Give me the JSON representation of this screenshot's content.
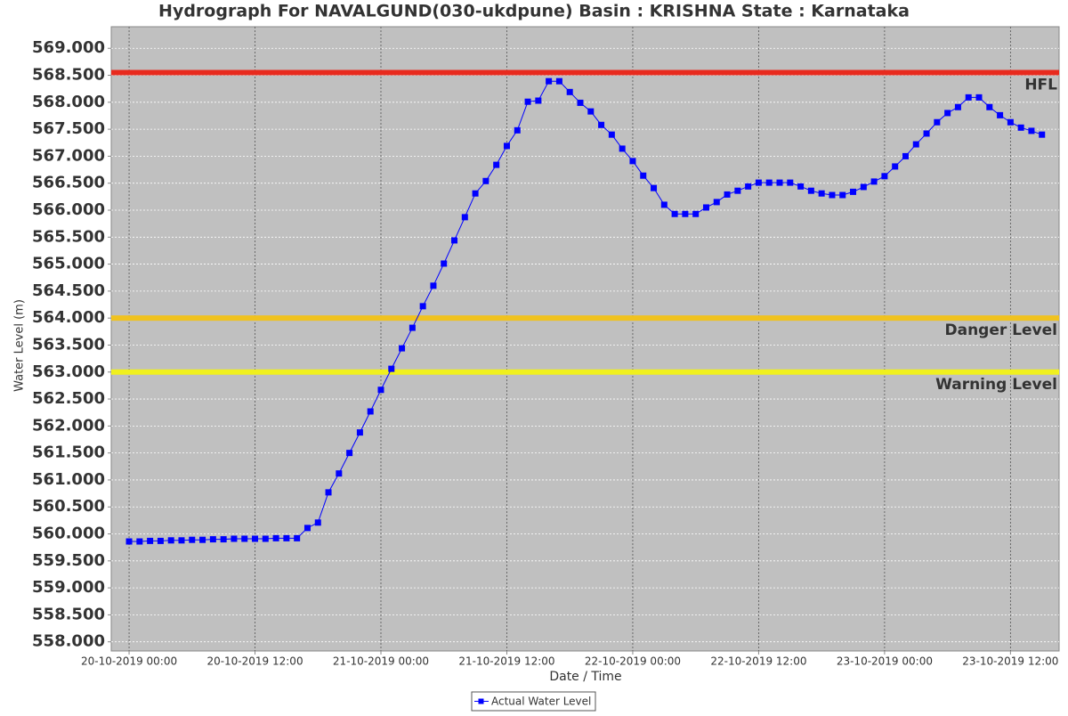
{
  "chart_data": {
    "type": "line",
    "title": "Hydrograph For NAVALGUND(030-ukdpune) Basin : KRISHNA State : Karnataka",
    "x_label": "Date / Time",
    "y_label": "Water Level (m)",
    "x": [
      "20-10-2019 00:00",
      "20-10-2019 01:00",
      "20-10-2019 02:00",
      "20-10-2019 03:00",
      "20-10-2019 04:00",
      "20-10-2019 05:00",
      "20-10-2019 06:00",
      "20-10-2019 07:00",
      "20-10-2019 08:00",
      "20-10-2019 09:00",
      "20-10-2019 10:00",
      "20-10-2019 11:00",
      "20-10-2019 12:00",
      "20-10-2019 13:00",
      "20-10-2019 14:00",
      "20-10-2019 15:00",
      "20-10-2019 16:00",
      "20-10-2019 17:00",
      "20-10-2019 18:00",
      "20-10-2019 19:00",
      "20-10-2019 20:00",
      "20-10-2019 21:00",
      "20-10-2019 22:00",
      "20-10-2019 23:00",
      "21-10-2019 00:00",
      "21-10-2019 01:00",
      "21-10-2019 02:00",
      "21-10-2019 03:00",
      "21-10-2019 04:00",
      "21-10-2019 05:00",
      "21-10-2019 06:00",
      "21-10-2019 07:00",
      "21-10-2019 08:00",
      "21-10-2019 09:00",
      "21-10-2019 10:00",
      "21-10-2019 11:00",
      "21-10-2019 12:00",
      "21-10-2019 13:00",
      "21-10-2019 14:00",
      "21-10-2019 15:00",
      "21-10-2019 16:00",
      "21-10-2019 17:00",
      "21-10-2019 18:00",
      "21-10-2019 19:00",
      "21-10-2019 20:00",
      "21-10-2019 21:00",
      "21-10-2019 22:00",
      "21-10-2019 23:00",
      "22-10-2019 00:00",
      "22-10-2019 01:00",
      "22-10-2019 02:00",
      "22-10-2019 03:00",
      "22-10-2019 04:00",
      "22-10-2019 05:00",
      "22-10-2019 06:00",
      "22-10-2019 07:00",
      "22-10-2019 08:00",
      "22-10-2019 09:00",
      "22-10-2019 10:00",
      "22-10-2019 11:00",
      "22-10-2019 12:00",
      "22-10-2019 13:00",
      "22-10-2019 14:00",
      "22-10-2019 15:00",
      "22-10-2019 16:00",
      "22-10-2019 17:00",
      "22-10-2019 18:00",
      "22-10-2019 19:00",
      "22-10-2019 20:00",
      "22-10-2019 21:00",
      "22-10-2019 22:00",
      "22-10-2019 23:00",
      "23-10-2019 00:00",
      "23-10-2019 01:00",
      "23-10-2019 02:00",
      "23-10-2019 03:00",
      "23-10-2019 04:00",
      "23-10-2019 05:00",
      "23-10-2019 06:00",
      "23-10-2019 07:00",
      "23-10-2019 08:00",
      "23-10-2019 09:00",
      "23-10-2019 10:00",
      "23-10-2019 11:00",
      "23-10-2019 12:00",
      "23-10-2019 13:00",
      "23-10-2019 14:00",
      "23-10-2019 15:00"
    ],
    "series": [
      {
        "name": "Actual Water Level",
        "color": "#0000ff",
        "values": [
          559.86,
          559.86,
          559.87,
          559.87,
          559.88,
          559.88,
          559.89,
          559.89,
          559.9,
          559.9,
          559.91,
          559.91,
          559.91,
          559.91,
          559.92,
          559.92,
          559.92,
          560.11,
          560.21,
          560.77,
          561.12,
          561.5,
          561.88,
          562.27,
          562.67,
          563.06,
          563.44,
          563.82,
          564.22,
          564.6,
          565.01,
          565.44,
          565.87,
          566.31,
          566.54,
          566.84,
          567.19,
          567.48,
          568.01,
          568.03,
          568.39,
          568.39,
          568.19,
          567.99,
          567.83,
          567.58,
          567.4,
          567.14,
          566.91,
          566.64,
          566.41,
          566.1,
          565.93,
          565.93,
          565.93,
          566.05,
          566.15,
          566.29,
          566.36,
          566.44,
          566.51,
          566.51,
          566.51,
          566.51,
          566.44,
          566.36,
          566.31,
          566.28,
          566.28,
          566.34,
          566.43,
          566.53,
          566.63,
          566.81,
          567.0,
          567.22,
          567.42,
          567.63,
          567.8,
          567.91,
          568.09,
          568.09,
          567.91,
          567.76,
          567.63,
          567.53,
          567.47,
          567.4
        ]
      }
    ],
    "reference_lines": [
      {
        "name": "HFL",
        "value": 568.55,
        "color": "#e82a1e"
      },
      {
        "name": "Danger Level",
        "value": 564.0,
        "color": "#f0c21e"
      },
      {
        "name": "Warning Level",
        "value": 563.0,
        "color": "#f0f01e"
      }
    ],
    "xlim": [
      "19-10-2019 22:18",
      "23-10-2019 16:38"
    ],
    "xticks": [
      "20-10-2019 00:00",
      "20-10-2019 12:00",
      "21-10-2019 00:00",
      "21-10-2019 12:00",
      "22-10-2019 00:00",
      "22-10-2019 12:00",
      "23-10-2019 00:00",
      "23-10-2019 12:00"
    ],
    "ylim": [
      557.83,
      569.4
    ],
    "yticks": [
      {
        "value": 558,
        "label": "558.000"
      },
      {
        "value": 558.5,
        "label": "558.500"
      },
      {
        "value": 559,
        "label": "559.000"
      },
      {
        "value": 559.5,
        "label": "559.500"
      },
      {
        "value": 560,
        "label": "560.000"
      },
      {
        "value": 560.5,
        "label": "560.500"
      },
      {
        "value": 561,
        "label": "561.000"
      },
      {
        "value": 561.5,
        "label": "561.500"
      },
      {
        "value": 562,
        "label": "562.000"
      },
      {
        "value": 562.5,
        "label": "562.500"
      },
      {
        "value": 563,
        "label": "563.000"
      },
      {
        "value": 563.5,
        "label": "563.500"
      },
      {
        "value": 564,
        "label": "564.000"
      },
      {
        "value": 564.5,
        "label": "564.500"
      },
      {
        "value": 565,
        "label": "565.000"
      },
      {
        "value": 565.5,
        "label": "565.500"
      },
      {
        "value": 566,
        "label": "566.000"
      },
      {
        "value": 566.5,
        "label": "566.500"
      },
      {
        "value": 567,
        "label": "567.000"
      },
      {
        "value": 567.5,
        "label": "567.500"
      },
      {
        "value": 568,
        "label": "568.000"
      },
      {
        "value": 568.5,
        "label": "568.500"
      },
      {
        "value": 569,
        "label": "569.000"
      }
    ],
    "grid": true,
    "legend": "bottom"
  }
}
